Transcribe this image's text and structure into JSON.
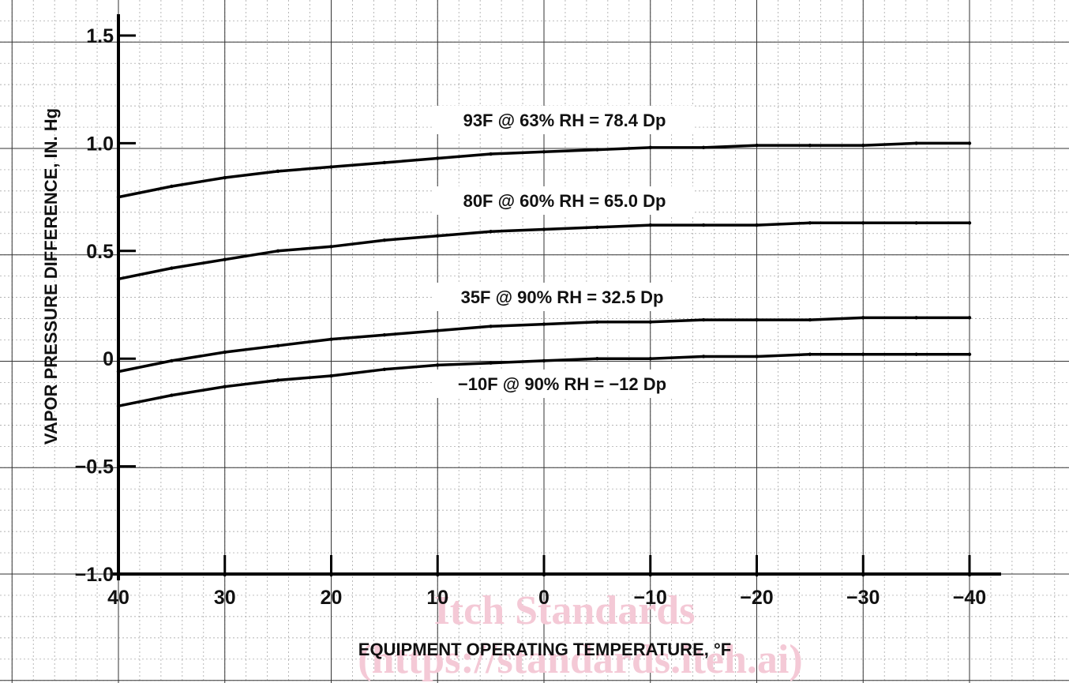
{
  "chart_data": {
    "type": "line",
    "title": "",
    "xlabel": "EQUIPMENT OPERATING TEMPERATURE, °F",
    "ylabel": "VAPOR PRESSURE DIFFERENCE, IN. Hg",
    "x_ticks": [
      "40",
      "30",
      "20",
      "10",
      "0",
      "−10",
      "−20",
      "−30",
      "−40"
    ],
    "y_ticks": [
      "1.5",
      "1.0",
      "0.5",
      "0",
      "−0.5",
      "−1.0"
    ],
    "xlim": [
      40,
      -40
    ],
    "ylim": [
      -1.0,
      1.5
    ],
    "grid": true,
    "x": [
      40,
      35,
      30,
      25,
      20,
      15,
      10,
      5,
      0,
      -5,
      -10,
      -15,
      -20,
      -25,
      -30,
      -35,
      -40
    ],
    "series": [
      {
        "name": "93F @ 63% RH = 78.4 Dp",
        "values": [
          0.75,
          0.8,
          0.84,
          0.87,
          0.89,
          0.91,
          0.93,
          0.95,
          0.96,
          0.97,
          0.98,
          0.98,
          0.99,
          0.99,
          0.99,
          1.0,
          1.0
        ]
      },
      {
        "name": "80F @ 60% RH = 65.0 Dp",
        "values": [
          0.37,
          0.42,
          0.46,
          0.5,
          0.52,
          0.55,
          0.57,
          0.59,
          0.6,
          0.61,
          0.62,
          0.62,
          0.62,
          0.63,
          0.63,
          0.63,
          0.63
        ]
      },
      {
        "name": "35F @ 90% RH = 32.5 Dp",
        "values": [
          -0.06,
          -0.01,
          0.03,
          0.06,
          0.09,
          0.11,
          0.13,
          0.15,
          0.16,
          0.17,
          0.17,
          0.18,
          0.18,
          0.18,
          0.19,
          0.19,
          0.19
        ]
      },
      {
        "name": "−10F @ 90% RH = −12 Dp",
        "values": [
          -0.22,
          -0.17,
          -0.13,
          -0.1,
          -0.08,
          -0.05,
          -0.03,
          -0.02,
          -0.01,
          0.0,
          0.0,
          0.01,
          0.01,
          0.02,
          0.02,
          0.02,
          0.02
        ]
      }
    ],
    "annotations": [
      "Itch Standards",
      "(https://standards.iteh.ai)"
    ]
  }
}
